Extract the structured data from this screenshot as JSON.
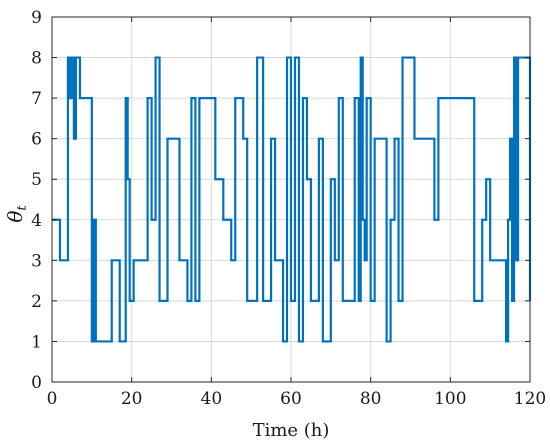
{
  "chart_data": {
    "type": "line",
    "step": true,
    "title": "",
    "xlabel": "Time (h)",
    "ylabel": "θ",
    "ylabel_subscript": "t",
    "xlim": [
      0,
      120
    ],
    "ylim": [
      0,
      9
    ],
    "xticks": [
      0,
      20,
      40,
      60,
      80,
      100,
      120
    ],
    "yticks": [
      0,
      1,
      2,
      3,
      4,
      5,
      6,
      7,
      8,
      9
    ],
    "grid": true,
    "line_color": "#0072BD",
    "series": [
      {
        "x": [
          0,
          2,
          4,
          4.5,
          5,
          5.5,
          6,
          7,
          10,
          10.5,
          11,
          15,
          17,
          18.5,
          19,
          19.5,
          20.5,
          22,
          24,
          25,
          26,
          27,
          29,
          32,
          34,
          35,
          36,
          37,
          41,
          43,
          45,
          46,
          48,
          49,
          51.5,
          53,
          55,
          56,
          58,
          59,
          60,
          61,
          62,
          63,
          64,
          65,
          67,
          68,
          70,
          71,
          72,
          73,
          76,
          77,
          77.5,
          78,
          78.5,
          79,
          80,
          81,
          84,
          85,
          86,
          87,
          88,
          91,
          92,
          96,
          97,
          104,
          106,
          108,
          109,
          110,
          112,
          114,
          114.5,
          115,
          115.5,
          116,
          116.5,
          117,
          120
        ],
        "y": [
          4,
          3,
          8,
          7,
          8,
          6,
          8,
          7,
          1,
          4,
          1,
          3,
          1,
          7,
          5,
          2,
          3,
          3,
          7,
          4,
          8,
          2,
          6,
          3,
          2,
          7,
          2,
          7,
          5,
          4,
          3,
          7,
          6,
          2,
          8,
          2,
          6,
          3,
          1,
          8,
          2,
          8,
          1,
          7,
          5,
          2,
          6,
          1,
          5,
          3,
          7,
          2,
          7,
          2,
          8,
          4,
          3,
          7,
          2,
          6,
          1,
          4,
          6,
          2,
          8,
          6,
          6,
          4,
          7,
          7,
          2,
          4,
          5,
          3,
          3,
          1,
          4,
          6,
          2,
          8,
          3,
          8,
          2
        ]
      }
    ]
  }
}
